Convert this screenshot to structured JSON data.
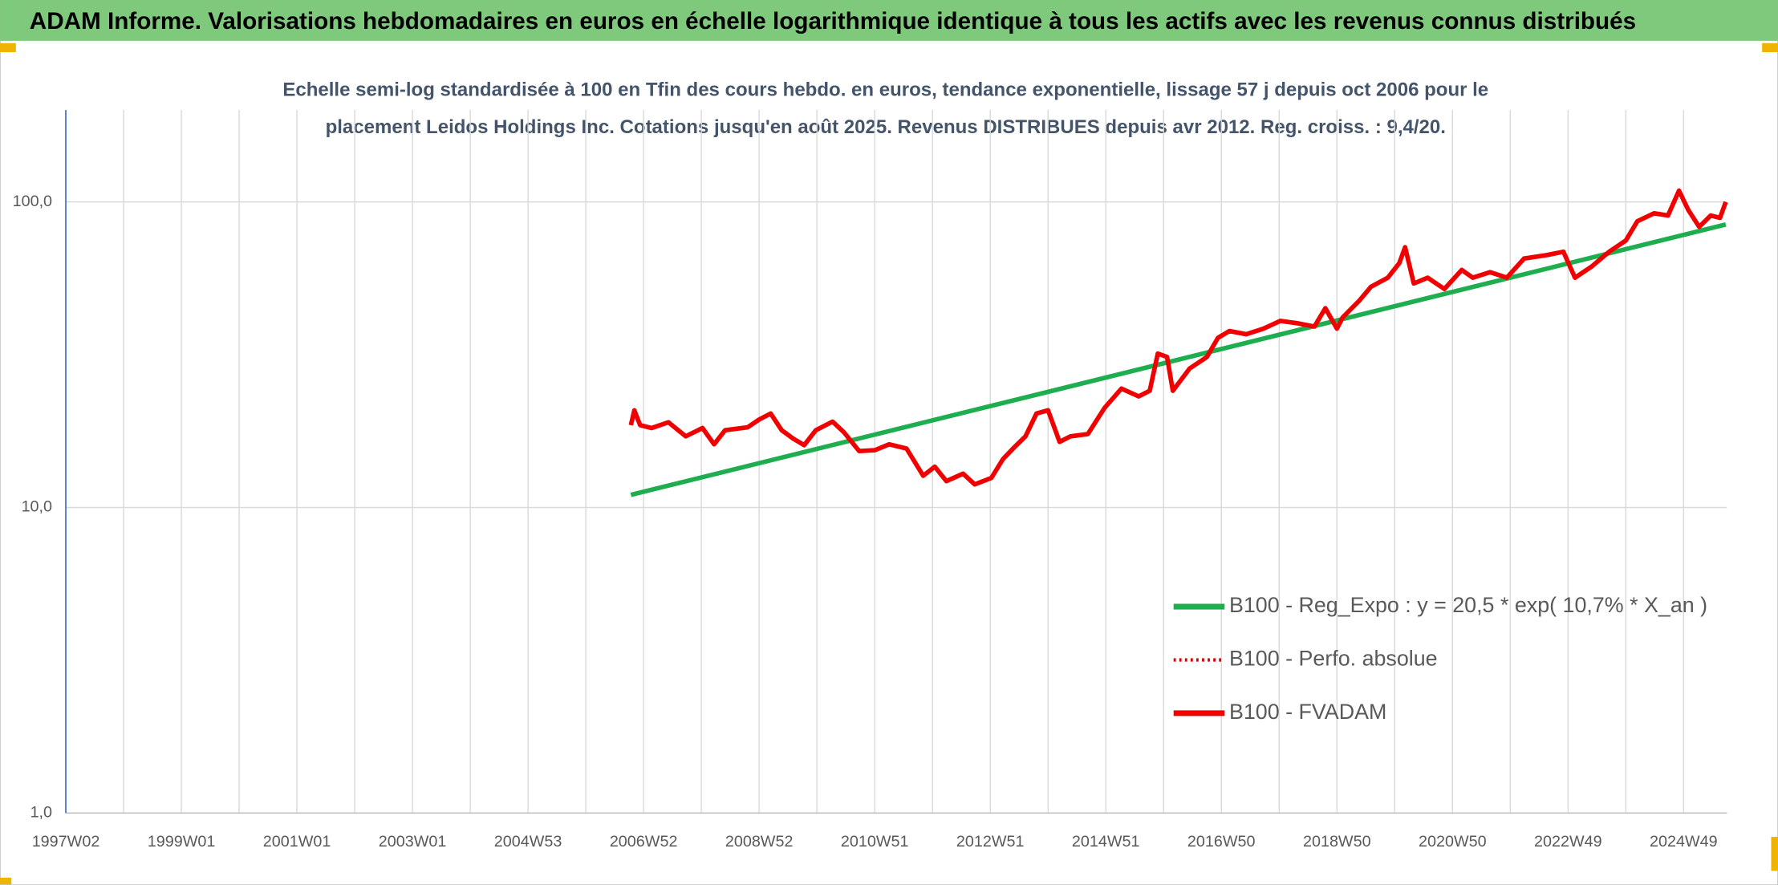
{
  "chart_data": {
    "type": "line",
    "title": "ADAM Informe. Valorisations hebdomadaires en euros en échelle logarithmique identique à tous les actifs avec les revenus connus distribués",
    "subtitle": [
      "Echelle semi-log standardisée à 100 en Tfin des cours hebdo. en euros, tendance exponentielle, lissage 57 j depuis oct 2006 pour le",
      "placement Leidos Holdings Inc. Cotations jusqu'en août 2025. Revenus DISTRIBUES depuis avr 2012. Reg. croiss. : 9,4/20."
    ],
    "log_y": true,
    "grid": true,
    "xlim": [
      1997,
      2025.75
    ],
    "xticks": [
      {
        "value": 1997,
        "label": "1997W02"
      },
      {
        "value": 1999,
        "label": "1999W01"
      },
      {
        "value": 2001,
        "label": "2001W01"
      },
      {
        "value": 2003,
        "label": "2003W01"
      },
      {
        "value": 2005,
        "label": "2004W53"
      },
      {
        "value": 2007,
        "label": "2006W52"
      },
      {
        "value": 2009,
        "label": "2008W52"
      },
      {
        "value": 2011,
        "label": "2010W51"
      },
      {
        "value": 2013,
        "label": "2012W51"
      },
      {
        "value": 2015,
        "label": "2014W51"
      },
      {
        "value": 2017,
        "label": "2016W50"
      },
      {
        "value": 2019,
        "label": "2018W50"
      },
      {
        "value": 2021,
        "label": "2020W50"
      },
      {
        "value": 2023,
        "label": "2022W49"
      },
      {
        "value": 2025,
        "label": "2024W49"
      }
    ],
    "xgrid_minor": [
      1998,
      2000,
      2002,
      2004,
      2006,
      2008,
      2010,
      2012,
      2014,
      2016,
      2018,
      2020,
      2022,
      2024
    ],
    "ylim": [
      1,
      200
    ],
    "yticks": [
      {
        "value": 1,
        "label": "1,0"
      },
      {
        "value": 10,
        "label": "10,0"
      },
      {
        "value": 100,
        "label": "100,0"
      }
    ],
    "series": [
      {
        "name": "B100 - Reg_Expo : y = 20,5 * exp( 10,7% *  X_an )",
        "color": "#1fae4f",
        "style": "solid",
        "x": [
          2006.78,
          2025.73
        ],
        "values": [
          11.0,
          84.4
        ]
      },
      {
        "name": "B100 - Perfo. absolue",
        "color": "#e00000",
        "style": "dotted",
        "x": [
          2006.78,
          2006.84,
          2006.94,
          2007.14,
          2007.43,
          2007.73,
          2008.02,
          2008.22,
          2008.41,
          2008.8,
          2009.0,
          2009.2,
          2009.39,
          2009.59,
          2009.78,
          2009.98,
          2010.27,
          2010.47,
          2010.73,
          2011.0,
          2011.25,
          2011.55,
          2011.84,
          2012.04,
          2012.24,
          2012.53,
          2012.73,
          2013.02,
          2013.22,
          2013.41,
          2013.61,
          2013.8,
          2014.0,
          2014.2,
          2014.39,
          2014.69,
          2014.98,
          2015.27,
          2015.57,
          2015.76,
          2015.9,
          2016.06,
          2016.16,
          2016.45,
          2016.75,
          2016.94,
          2017.14,
          2017.43,
          2017.73,
          2018.02,
          2018.31,
          2018.61,
          2018.8,
          2019.0,
          2019.1,
          2019.39,
          2019.59,
          2019.88,
          2020.08,
          2020.18,
          2020.33,
          2020.57,
          2020.86,
          2021.16,
          2021.35,
          2021.65,
          2021.94,
          2022.24,
          2022.63,
          2022.92,
          2023.12,
          2023.41,
          2023.71,
          2024.0,
          2024.2,
          2024.49,
          2024.73,
          2024.92,
          2025.08,
          2025.27,
          2025.47,
          2025.63,
          2025.73
        ],
        "values": [
          18.6,
          20.8,
          18.6,
          18.2,
          19.0,
          17.1,
          18.2,
          16.1,
          17.9,
          18.3,
          19.4,
          20.3,
          17.9,
          16.8,
          16.0,
          17.9,
          19.1,
          17.6,
          15.3,
          15.4,
          16.1,
          15.6,
          12.7,
          13.6,
          12.2,
          12.9,
          11.9,
          12.5,
          14.4,
          15.7,
          17.1,
          20.3,
          20.8,
          16.4,
          17.1,
          17.4,
          21.2,
          24.5,
          23.1,
          24.1,
          31.9,
          31.1,
          24.1,
          28.5,
          31.1,
          35.9,
          37.8,
          36.9,
          38.5,
          40.8,
          40.1,
          39.1,
          44.9,
          38.5,
          41.9,
          47.6,
          52.8,
          56.5,
          63.1,
          71.1,
          54.1,
          56.5,
          51.9,
          59.9,
          56.5,
          58.9,
          56.5,
          65.3,
          67.0,
          68.7,
          56.5,
          61.5,
          68.7,
          74.8,
          86.5,
          91.8,
          90.3,
          108.9,
          94.2,
          82.9,
          90.3,
          88.7,
          100
        ]
      },
      {
        "name": "B100 - FVADAM",
        "color": "#f00000",
        "style": "solid",
        "x": [
          2006.78,
          2006.84,
          2006.94,
          2007.14,
          2007.43,
          2007.73,
          2008.02,
          2008.22,
          2008.41,
          2008.8,
          2009.0,
          2009.2,
          2009.39,
          2009.59,
          2009.78,
          2009.98,
          2010.27,
          2010.47,
          2010.73,
          2011.0,
          2011.25,
          2011.55,
          2011.84,
          2012.04,
          2012.24,
          2012.53,
          2012.73,
          2013.02,
          2013.22,
          2013.41,
          2013.61,
          2013.8,
          2014.0,
          2014.2,
          2014.39,
          2014.69,
          2014.98,
          2015.27,
          2015.57,
          2015.76,
          2015.9,
          2016.06,
          2016.16,
          2016.45,
          2016.75,
          2016.94,
          2017.14,
          2017.43,
          2017.73,
          2018.02,
          2018.31,
          2018.61,
          2018.8,
          2019.0,
          2019.1,
          2019.39,
          2019.59,
          2019.88,
          2020.08,
          2020.18,
          2020.33,
          2020.57,
          2020.86,
          2021.16,
          2021.35,
          2021.65,
          2021.94,
          2022.24,
          2022.63,
          2022.92,
          2023.12,
          2023.41,
          2023.71,
          2024.0,
          2024.2,
          2024.49,
          2024.73,
          2024.92,
          2025.08,
          2025.27,
          2025.47,
          2025.63,
          2025.73
        ],
        "values": [
          18.6,
          20.8,
          18.6,
          18.2,
          19.0,
          17.1,
          18.2,
          16.1,
          17.9,
          18.3,
          19.4,
          20.3,
          17.9,
          16.8,
          16.0,
          17.9,
          19.1,
          17.6,
          15.3,
          15.4,
          16.1,
          15.6,
          12.7,
          13.6,
          12.2,
          12.9,
          11.9,
          12.5,
          14.4,
          15.7,
          17.1,
          20.3,
          20.8,
          16.4,
          17.1,
          17.4,
          21.2,
          24.5,
          23.1,
          24.1,
          31.9,
          31.1,
          24.1,
          28.5,
          31.1,
          35.9,
          37.8,
          36.9,
          38.5,
          40.8,
          40.1,
          39.1,
          44.9,
          38.5,
          41.9,
          47.6,
          52.8,
          56.5,
          63.1,
          71.1,
          54.1,
          56.5,
          51.9,
          59.9,
          56.5,
          58.9,
          56.5,
          65.3,
          67.0,
          68.7,
          56.5,
          61.5,
          68.7,
          74.8,
          86.5,
          91.8,
          90.3,
          108.9,
          94.2,
          82.9,
          90.3,
          88.7,
          100
        ]
      }
    ]
  }
}
